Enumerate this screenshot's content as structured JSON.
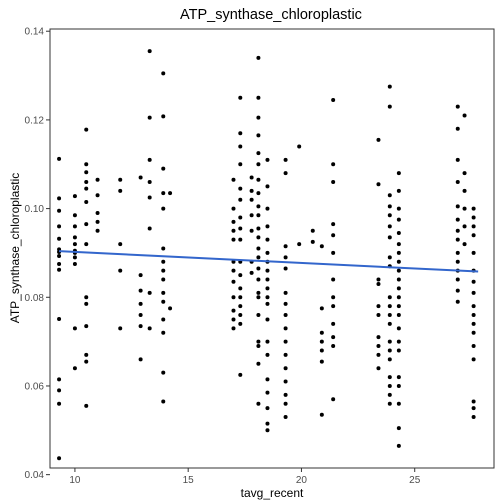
{
  "chart_data": {
    "type": "scatter",
    "title": "ATP_synthase_chloroplastic",
    "xlabel": "tavg_recent",
    "ylabel": "ATP_synthase_chloroplastic",
    "xlim": [
      8.9,
      28.5
    ],
    "ylim": [
      0.0415,
      0.1405
    ],
    "x_ticks": [
      10,
      15,
      20,
      25
    ],
    "y_ticks": [
      0.04,
      0.06,
      0.08,
      0.1,
      0.12,
      0.14
    ],
    "y_tick_labels": [
      "0.04",
      "0.06",
      "0.08",
      "0.10",
      "0.12",
      "0.14"
    ],
    "grid": false,
    "legend": "none",
    "point_color": "#000000",
    "trend_color": "#3366cc",
    "trend_line": {
      "x": [
        9.3,
        27.8
      ],
      "y": [
        0.0904,
        0.0858
      ]
    },
    "points": [
      [
        9.3,
        0.1112
      ],
      [
        9.3,
        0.1023
      ],
      [
        9.3,
        0.0995
      ],
      [
        9.3,
        0.096
      ],
      [
        9.3,
        0.0932
      ],
      [
        9.3,
        0.0908
      ],
      [
        9.3,
        0.0902
      ],
      [
        9.3,
        0.0893
      ],
      [
        9.3,
        0.0875
      ],
      [
        9.3,
        0.0862
      ],
      [
        9.3,
        0.0751
      ],
      [
        9.3,
        0.0615
      ],
      [
        9.3,
        0.059
      ],
      [
        9.3,
        0.056
      ],
      [
        9.3,
        0.0437
      ],
      [
        10.0,
        0.1028
      ],
      [
        10.0,
        0.0985
      ],
      [
        10.0,
        0.096
      ],
      [
        10.0,
        0.0935
      ],
      [
        10.0,
        0.092
      ],
      [
        10.0,
        0.0905
      ],
      [
        10.0,
        0.09
      ],
      [
        10.0,
        0.089
      ],
      [
        10.0,
        0.0875
      ],
      [
        10.0,
        0.073
      ],
      [
        10.0,
        0.064
      ],
      [
        10.5,
        0.1178
      ],
      [
        10.5,
        0.11
      ],
      [
        10.5,
        0.1082
      ],
      [
        10.5,
        0.106
      ],
      [
        10.5,
        0.1045
      ],
      [
        10.5,
        0.1015
      ],
      [
        10.5,
        0.0965
      ],
      [
        10.5,
        0.092
      ],
      [
        10.5,
        0.08
      ],
      [
        10.5,
        0.0785
      ],
      [
        10.5,
        0.0735
      ],
      [
        10.5,
        0.067
      ],
      [
        10.5,
        0.0655
      ],
      [
        10.5,
        0.0555
      ],
      [
        11.0,
        0.1065
      ],
      [
        11.0,
        0.103
      ],
      [
        11.0,
        0.099
      ],
      [
        11.0,
        0.097
      ],
      [
        11.0,
        0.095
      ],
      [
        12.0,
        0.1065
      ],
      [
        12.0,
        0.104
      ],
      [
        12.0,
        0.092
      ],
      [
        12.0,
        0.086
      ],
      [
        12.0,
        0.073
      ],
      [
        12.9,
        0.107
      ],
      [
        12.9,
        0.085
      ],
      [
        12.9,
        0.0815
      ],
      [
        12.9,
        0.0785
      ],
      [
        12.9,
        0.076
      ],
      [
        12.9,
        0.0735
      ],
      [
        12.9,
        0.066
      ],
      [
        13.3,
        0.1355
      ],
      [
        13.3,
        0.1205
      ],
      [
        13.3,
        0.111
      ],
      [
        13.3,
        0.106
      ],
      [
        13.3,
        0.1025
      ],
      [
        13.3,
        0.0955
      ],
      [
        13.3,
        0.081
      ],
      [
        13.3,
        0.073
      ],
      [
        13.9,
        0.1305
      ],
      [
        13.9,
        0.1208
      ],
      [
        13.9,
        0.109
      ],
      [
        13.9,
        0.1035
      ],
      [
        13.9,
        0.1
      ],
      [
        13.9,
        0.091
      ],
      [
        13.9,
        0.088
      ],
      [
        13.9,
        0.086
      ],
      [
        13.9,
        0.084
      ],
      [
        13.9,
        0.081
      ],
      [
        13.9,
        0.079
      ],
      [
        13.9,
        0.075
      ],
      [
        13.9,
        0.072
      ],
      [
        13.9,
        0.063
      ],
      [
        13.9,
        0.0565
      ],
      [
        14.2,
        0.1035
      ],
      [
        14.2,
        0.0775
      ],
      [
        17.0,
        0.1065
      ],
      [
        17.0,
        0.1
      ],
      [
        17.0,
        0.097
      ],
      [
        17.0,
        0.095
      ],
      [
        17.0,
        0.093
      ],
      [
        17.0,
        0.088
      ],
      [
        17.0,
        0.086
      ],
      [
        17.0,
        0.0835
      ],
      [
        17.0,
        0.08
      ],
      [
        17.0,
        0.077
      ],
      [
        17.0,
        0.075
      ],
      [
        17.0,
        0.073
      ],
      [
        17.3,
        0.125
      ],
      [
        17.3,
        0.117
      ],
      [
        17.3,
        0.114
      ],
      [
        17.3,
        0.11
      ],
      [
        17.3,
        0.1045
      ],
      [
        17.3,
        0.102
      ],
      [
        17.3,
        0.098
      ],
      [
        17.3,
        0.0955
      ],
      [
        17.3,
        0.093
      ],
      [
        17.3,
        0.088
      ],
      [
        17.3,
        0.085
      ],
      [
        17.3,
        0.082
      ],
      [
        17.3,
        0.08
      ],
      [
        17.3,
        0.078
      ],
      [
        17.3,
        0.076
      ],
      [
        17.3,
        0.074
      ],
      [
        17.3,
        0.0625
      ],
      [
        17.8,
        0.107
      ],
      [
        17.8,
        0.104
      ],
      [
        17.8,
        0.102
      ],
      [
        17.8,
        0.0985
      ],
      [
        17.8,
        0.095
      ],
      [
        17.8,
        0.088
      ],
      [
        17.8,
        0.0855
      ],
      [
        18.1,
        0.134
      ],
      [
        18.1,
        0.125
      ],
      [
        18.1,
        0.1205
      ],
      [
        18.1,
        0.1165
      ],
      [
        18.1,
        0.1125
      ],
      [
        18.1,
        0.11
      ],
      [
        18.1,
        0.1065
      ],
      [
        18.1,
        0.1035
      ],
      [
        18.1,
        0.1005
      ],
      [
        18.1,
        0.0985
      ],
      [
        18.1,
        0.0955
      ],
      [
        18.1,
        0.0935
      ],
      [
        18.1,
        0.091
      ],
      [
        18.1,
        0.089
      ],
      [
        18.1,
        0.0865
      ],
      [
        18.1,
        0.084
      ],
      [
        18.1,
        0.081
      ],
      [
        18.1,
        0.08
      ],
      [
        18.1,
        0.076
      ],
      [
        18.1,
        0.07
      ],
      [
        18.1,
        0.069
      ],
      [
        18.1,
        0.065
      ],
      [
        18.1,
        0.056
      ],
      [
        18.5,
        0.111
      ],
      [
        18.5,
        0.105
      ],
      [
        18.5,
        0.1
      ],
      [
        18.5,
        0.096
      ],
      [
        18.5,
        0.093
      ],
      [
        18.5,
        0.09
      ],
      [
        18.5,
        0.088
      ],
      [
        18.5,
        0.086
      ],
      [
        18.5,
        0.084
      ],
      [
        18.5,
        0.082
      ],
      [
        18.5,
        0.08
      ],
      [
        18.5,
        0.0785
      ],
      [
        18.5,
        0.075
      ],
      [
        18.5,
        0.07
      ],
      [
        18.5,
        0.067
      ],
      [
        18.5,
        0.0615
      ],
      [
        18.5,
        0.0585
      ],
      [
        18.5,
        0.055
      ],
      [
        18.5,
        0.0515
      ],
      [
        18.5,
        0.05
      ],
      [
        19.3,
        0.111
      ],
      [
        19.3,
        0.108
      ],
      [
        19.3,
        0.0915
      ],
      [
        19.3,
        0.089
      ],
      [
        19.3,
        0.0865
      ],
      [
        19.3,
        0.081
      ],
      [
        19.3,
        0.0785
      ],
      [
        19.3,
        0.076
      ],
      [
        19.3,
        0.073
      ],
      [
        19.3,
        0.07
      ],
      [
        19.3,
        0.067
      ],
      [
        19.3,
        0.064
      ],
      [
        19.3,
        0.061
      ],
      [
        19.3,
        0.058
      ],
      [
        19.3,
        0.056
      ],
      [
        19.3,
        0.053
      ],
      [
        19.9,
        0.114
      ],
      [
        19.9,
        0.092
      ],
      [
        20.5,
        0.095
      ],
      [
        20.5,
        0.0925
      ],
      [
        20.9,
        0.0915
      ],
      [
        20.9,
        0.0775
      ],
      [
        20.9,
        0.072
      ],
      [
        20.9,
        0.07
      ],
      [
        20.9,
        0.068
      ],
      [
        20.9,
        0.0655
      ],
      [
        20.9,
        0.0535
      ],
      [
        21.4,
        0.1245
      ],
      [
        21.4,
        0.11
      ],
      [
        21.4,
        0.106
      ],
      [
        21.4,
        0.0965
      ],
      [
        21.4,
        0.094
      ],
      [
        21.4,
        0.09
      ],
      [
        21.4,
        0.084
      ],
      [
        21.4,
        0.08
      ],
      [
        21.4,
        0.078
      ],
      [
        21.4,
        0.074
      ],
      [
        21.4,
        0.071
      ],
      [
        21.4,
        0.069
      ],
      [
        21.4,
        0.057
      ],
      [
        23.4,
        0.1155
      ],
      [
        23.4,
        0.1055
      ],
      [
        23.4,
        0.084
      ],
      [
        23.4,
        0.083
      ],
      [
        23.4,
        0.078
      ],
      [
        23.4,
        0.076
      ],
      [
        23.4,
        0.071
      ],
      [
        23.4,
        0.069
      ],
      [
        23.4,
        0.067
      ],
      [
        23.4,
        0.064
      ],
      [
        23.9,
        0.1275
      ],
      [
        23.9,
        0.123
      ],
      [
        23.9,
        0.103
      ],
      [
        23.9,
        0.1005
      ],
      [
        23.9,
        0.0985
      ],
      [
        23.9,
        0.096
      ],
      [
        23.9,
        0.0935
      ],
      [
        23.9,
        0.089
      ],
      [
        23.9,
        0.087
      ],
      [
        23.9,
        0.08
      ],
      [
        23.9,
        0.078
      ],
      [
        23.9,
        0.076
      ],
      [
        23.9,
        0.074
      ],
      [
        23.9,
        0.07
      ],
      [
        23.9,
        0.068
      ],
      [
        23.9,
        0.066
      ],
      [
        23.9,
        0.062
      ],
      [
        23.9,
        0.06
      ],
      [
        23.9,
        0.058
      ],
      [
        23.9,
        0.056
      ],
      [
        24.3,
        0.108
      ],
      [
        24.3,
        0.104
      ],
      [
        24.3,
        0.1
      ],
      [
        24.3,
        0.0975
      ],
      [
        24.3,
        0.0945
      ],
      [
        24.3,
        0.092
      ],
      [
        24.3,
        0.09
      ],
      [
        24.3,
        0.088
      ],
      [
        24.3,
        0.086
      ],
      [
        24.3,
        0.084
      ],
      [
        24.3,
        0.082
      ],
      [
        24.3,
        0.08
      ],
      [
        24.3,
        0.078
      ],
      [
        24.3,
        0.076
      ],
      [
        24.3,
        0.073
      ],
      [
        24.3,
        0.07
      ],
      [
        24.3,
        0.068
      ],
      [
        24.3,
        0.062
      ],
      [
        24.3,
        0.06
      ],
      [
        24.3,
        0.056
      ],
      [
        24.3,
        0.0505
      ],
      [
        24.3,
        0.0465
      ],
      [
        26.9,
        0.123
      ],
      [
        26.9,
        0.118
      ],
      [
        26.9,
        0.111
      ],
      [
        26.9,
        0.106
      ],
      [
        26.9,
        0.1005
      ],
      [
        26.9,
        0.0975
      ],
      [
        26.9,
        0.095
      ],
      [
        26.9,
        0.093
      ],
      [
        26.9,
        0.09
      ],
      [
        26.9,
        0.088
      ],
      [
        26.9,
        0.086
      ],
      [
        26.9,
        0.084
      ],
      [
        26.9,
        0.0815
      ],
      [
        26.9,
        0.079
      ],
      [
        27.2,
        0.121
      ],
      [
        27.2,
        0.108
      ],
      [
        27.2,
        0.104
      ],
      [
        27.2,
        0.1
      ],
      [
        27.2,
        0.096
      ],
      [
        27.2,
        0.092
      ],
      [
        27.6,
        0.1
      ],
      [
        27.6,
        0.098
      ],
      [
        27.6,
        0.096
      ],
      [
        27.6,
        0.094
      ],
      [
        27.6,
        0.09
      ],
      [
        27.6,
        0.086
      ],
      [
        27.6,
        0.0835
      ],
      [
        27.6,
        0.081
      ],
      [
        27.6,
        0.078
      ],
      [
        27.6,
        0.076
      ],
      [
        27.6,
        0.074
      ],
      [
        27.6,
        0.072
      ],
      [
        27.6,
        0.069
      ],
      [
        27.6,
        0.066
      ],
      [
        27.6,
        0.0565
      ],
      [
        27.6,
        0.055
      ],
      [
        27.6,
        0.053
      ]
    ]
  }
}
